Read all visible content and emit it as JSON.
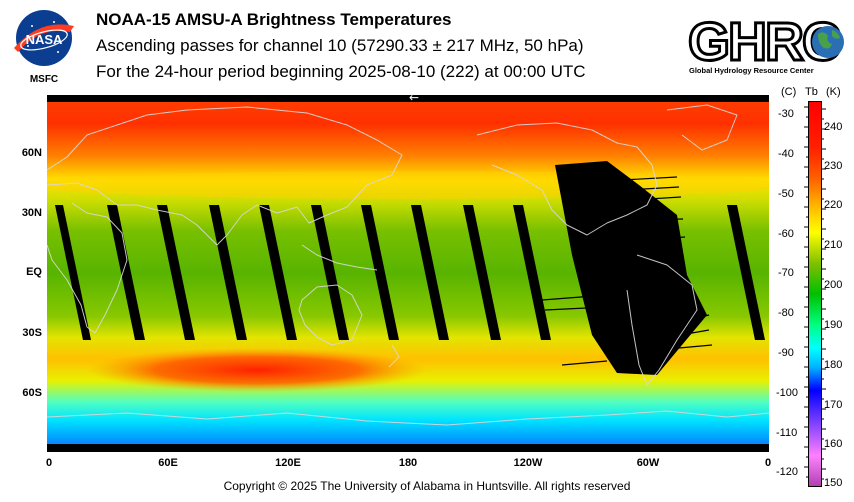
{
  "header": {
    "title": "NOAA-15 AMSU-A Brightness Temperatures",
    "subtitle": "Ascending passes for channel 10 (57290.33 ± 217 MHz, 50 hPa)",
    "period": "For the 24-hour period beginning 2025-08-10 (222) at 00:00 UTC"
  },
  "logos": {
    "nasa_text": "NASA",
    "nasa_center": "MSFC",
    "ghrc_text": "GHRC",
    "ghrc_caption": "Global Hydrology Resource Center"
  },
  "map": {
    "pass_direction_marker": "←",
    "lat_labels": [
      "60N",
      "30N",
      "EQ",
      "30S",
      "60S"
    ],
    "lon_labels": [
      "0",
      "60E",
      "120E",
      "180",
      "120W",
      "60W",
      "0"
    ]
  },
  "colorbar": {
    "celsius_header": "(C)",
    "tb_header": "Tb",
    "kelvin_header": "(K)",
    "celsius_ticks": [
      "-30",
      "-40",
      "-50",
      "-60",
      "-70",
      "-80",
      "-90",
      "-100",
      "-110",
      "-120"
    ],
    "kelvin_ticks": [
      "240",
      "230",
      "220",
      "210",
      "200",
      "190",
      "180",
      "170",
      "160",
      "150"
    ],
    "colors": [
      "#b040b0",
      "#ff80ff",
      "#0000ff",
      "#00b4ff",
      "#00ffff",
      "#00ff80",
      "#00c000",
      "#80c000",
      "#ffff00",
      "#ffc000",
      "#ff6000",
      "#ff2000",
      "#ff0000"
    ]
  },
  "footer": {
    "copyright": "Copyright © 2025 The University of Alabama in Huntsville.  All rights reserved"
  }
}
